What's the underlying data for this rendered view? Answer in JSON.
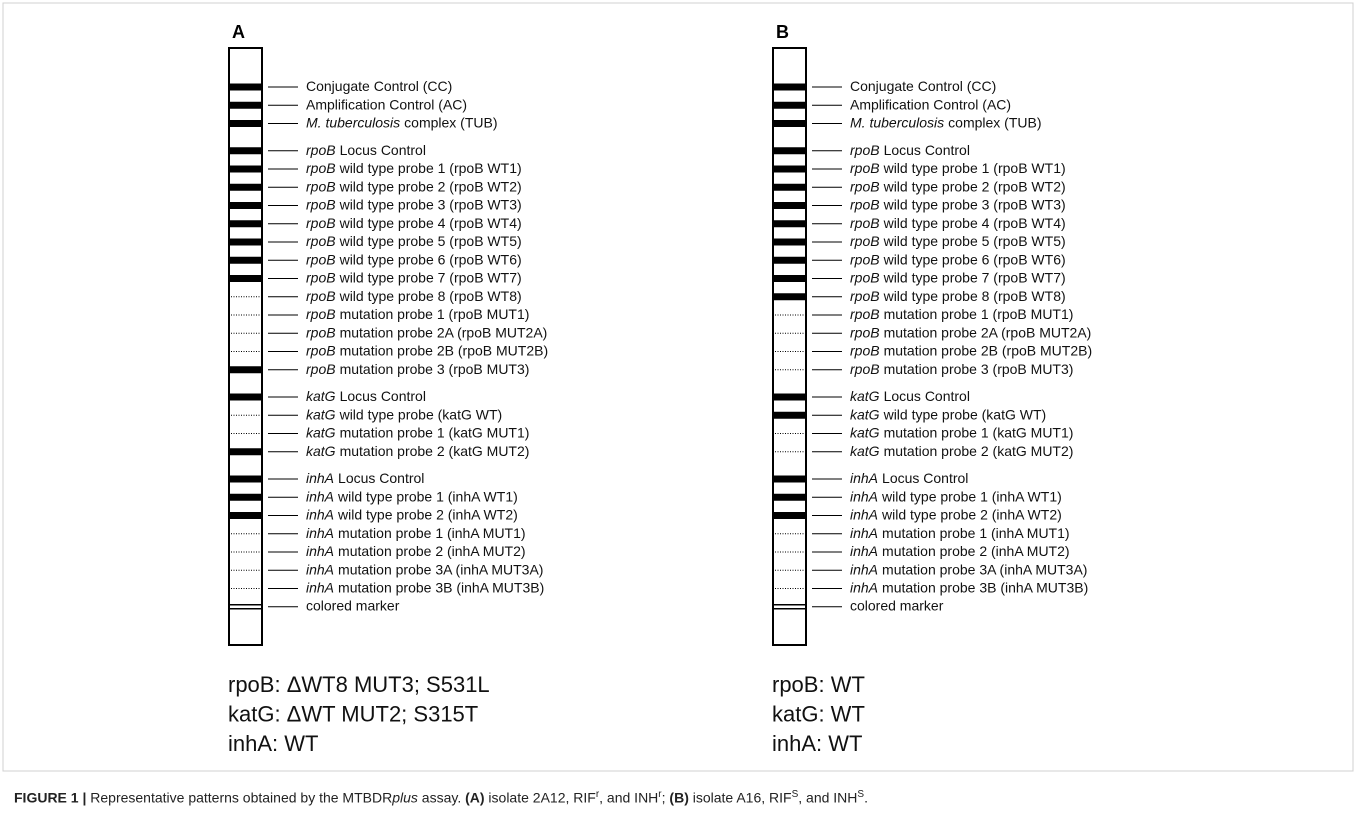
{
  "panels": [
    {
      "label": "A",
      "groups": [
        [
          {
            "text": "Conjugate Control (CC)",
            "band": true
          },
          {
            "text": "Amplification Control (AC)",
            "band": true
          },
          {
            "italic": "M. tuberculosis",
            "text": "complex (TUB)",
            "band": true
          }
        ],
        [
          {
            "italic": "rpoB",
            "text": "Locus Control",
            "band": true
          },
          {
            "italic": "rpoB",
            "text": "wild type probe 1 (rpoB WT1)",
            "band": true
          },
          {
            "italic": "rpoB",
            "text": "wild type probe 2 (rpoB WT2)",
            "band": true
          },
          {
            "italic": "rpoB",
            "text": "wild type probe 3 (rpoB WT3)",
            "band": true
          },
          {
            "italic": "rpoB",
            "text": "wild type probe 4 (rpoB WT4)",
            "band": true
          },
          {
            "italic": "rpoB",
            "text": "wild type probe 5 (rpoB WT5)",
            "band": true
          },
          {
            "italic": "rpoB",
            "text": "wild type probe 6 (rpoB WT6)",
            "band": true
          },
          {
            "italic": "rpoB",
            "text": "wild type probe 7 (rpoB WT7)",
            "band": true
          },
          {
            "italic": "rpoB",
            "text": "wild type probe 8 (rpoB WT8)",
            "band": false
          },
          {
            "italic": "rpoB",
            "text": "mutation probe 1 (rpoB MUT1)",
            "band": false
          },
          {
            "italic": "rpoB",
            "text": "mutation probe 2A (rpoB MUT2A)",
            "band": false
          },
          {
            "italic": "rpoB",
            "text": "mutation probe 2B (rpoB MUT2B)",
            "band": false
          },
          {
            "italic": "rpoB",
            "text": "mutation probe 3 (rpoB MUT3)",
            "band": true
          }
        ],
        [
          {
            "italic": "katG",
            "text": "Locus Control",
            "band": true
          },
          {
            "italic": "katG",
            "text": "wild type probe (katG WT)",
            "band": false
          },
          {
            "italic": "katG",
            "text": "mutation probe 1 (katG MUT1)",
            "band": false
          },
          {
            "italic": "katG",
            "text": "mutation probe 2 (katG MUT2)",
            "band": true
          }
        ],
        [
          {
            "italic": "inhA",
            "text": "Locus Control",
            "band": true
          },
          {
            "italic": "inhA",
            "text": "wild type probe 1 (inhA WT1)",
            "band": true
          },
          {
            "italic": "inhA",
            "text": "wild type probe 2 (inhA WT2)",
            "band": true
          },
          {
            "italic": "inhA",
            "text": "mutation probe 1 (inhA MUT1)",
            "band": false
          },
          {
            "italic": "inhA",
            "text": "mutation probe 2 (inhA MUT2)",
            "band": false
          },
          {
            "italic": "inhA",
            "text": "mutation probe 3A (inhA MUT3A)",
            "band": false
          },
          {
            "italic": "inhA",
            "text": "mutation probe 3B (inhA MUT3B)",
            "band": false
          }
        ]
      ],
      "marker": "colored marker",
      "results": [
        "rpoB: ΔWT8 MUT3; S531L",
        "katG: ΔWT MUT2; S315T",
        "inhA: WT"
      ]
    },
    {
      "label": "B",
      "groups": [
        [
          {
            "text": "Conjugate Control (CC)",
            "band": true
          },
          {
            "text": "Amplification Control (AC)",
            "band": true
          },
          {
            "italic": "M. tuberculosis",
            "text": "complex (TUB)",
            "band": true
          }
        ],
        [
          {
            "italic": "rpoB",
            "text": "Locus Control",
            "band": true
          },
          {
            "italic": "rpoB",
            "text": "wild type probe 1 (rpoB WT1)",
            "band": true
          },
          {
            "italic": "rpoB",
            "text": "wild type probe 2 (rpoB WT2)",
            "band": true
          },
          {
            "italic": "rpoB",
            "text": "wild type probe 3 (rpoB WT3)",
            "band": true
          },
          {
            "italic": "rpoB",
            "text": "wild type probe 4 (rpoB WT4)",
            "band": true
          },
          {
            "italic": "rpoB",
            "text": "wild type probe 5 (rpoB WT5)",
            "band": true
          },
          {
            "italic": "rpoB",
            "text": "wild type probe 6 (rpoB WT6)",
            "band": true
          },
          {
            "italic": "rpoB",
            "text": "wild type probe 7 (rpoB WT7)",
            "band": true
          },
          {
            "italic": "rpoB",
            "text": "wild type probe 8 (rpoB WT8)",
            "band": true
          },
          {
            "italic": "rpoB",
            "text": "mutation probe 1 (rpoB MUT1)",
            "band": false
          },
          {
            "italic": "rpoB",
            "text": "mutation probe 2A (rpoB MUT2A)",
            "band": false
          },
          {
            "italic": "rpoB",
            "text": "mutation probe 2B (rpoB MUT2B)",
            "band": false
          },
          {
            "italic": "rpoB",
            "text": "mutation probe 3 (rpoB MUT3)",
            "band": false
          }
        ],
        [
          {
            "italic": "katG",
            "text": "Locus Control",
            "band": true
          },
          {
            "italic": "katG",
            "text": "wild type probe (katG WT)",
            "band": true
          },
          {
            "italic": "katG",
            "text": "mutation probe 1 (katG MUT1)",
            "band": false
          },
          {
            "italic": "katG",
            "text": "mutation probe 2 (katG MUT2)",
            "band": false
          }
        ],
        [
          {
            "italic": "inhA",
            "text": "Locus Control",
            "band": true
          },
          {
            "italic": "inhA",
            "text": "wild type probe 1 (inhA WT1)",
            "band": true
          },
          {
            "italic": "inhA",
            "text": "wild type probe 2 (inhA WT2)",
            "band": true
          },
          {
            "italic": "inhA",
            "text": "mutation probe 1 (inhA MUT1)",
            "band": false
          },
          {
            "italic": "inhA",
            "text": "mutation probe 2 (inhA MUT2)",
            "band": false
          },
          {
            "italic": "inhA",
            "text": "mutation probe 3A (inhA MUT3A)",
            "band": false
          },
          {
            "italic": "inhA",
            "text": "mutation probe 3B (inhA MUT3B)",
            "band": false
          }
        ]
      ],
      "marker": "colored marker",
      "results": [
        "rpoB: WT",
        "katG: WT",
        "inhA: WT"
      ]
    }
  ],
  "caption": [
    {
      "text": "FIGURE 1 | ",
      "style": "bold"
    },
    {
      "text": "Representative patterns obtained by the MTBDR",
      "style": "normal"
    },
    {
      "text": "plus",
      "style": "italic"
    },
    {
      "text": " assay. ",
      "style": "normal"
    },
    {
      "text": "(A)",
      "style": "bold"
    },
    {
      "text": " isolate 2A12, RIF",
      "style": "normal"
    },
    {
      "text": "r",
      "style": "sup"
    },
    {
      "text": ", and INH",
      "style": "normal"
    },
    {
      "text": "r",
      "style": "sup"
    },
    {
      "text": "; ",
      "style": "normal"
    },
    {
      "text": "(B)",
      "style": "bold"
    },
    {
      "text": " isolate A16, RIF",
      "style": "normal"
    },
    {
      "text": "S",
      "style": "sup"
    },
    {
      "text": ", and INH",
      "style": "normal"
    },
    {
      "text": "S",
      "style": "sup"
    },
    {
      "text": ".",
      "style": "normal"
    }
  ]
}
